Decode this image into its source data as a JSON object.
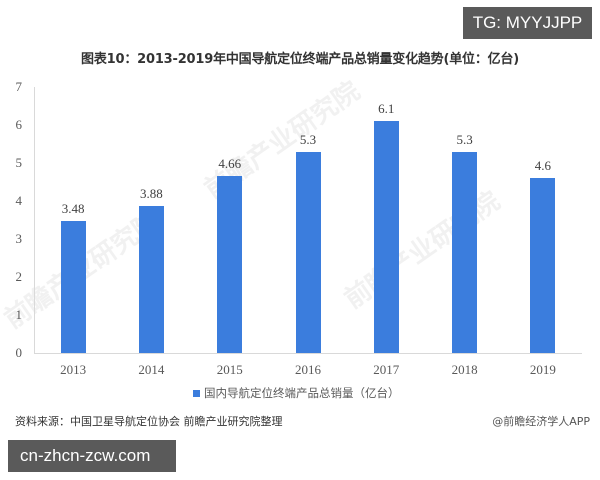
{
  "badges": {
    "top_right": "TG: MYYJJPP",
    "bottom_left": "cn-zhcn-zcw.com"
  },
  "colors": {
    "bar": "#3b7ddd",
    "axis": "#d9d9d9",
    "badge_bg": "#5a5a5a"
  },
  "footer": {
    "source": "资料来源：中国卫星导航定位协会 前瞻产业研究院整理",
    "credit": "@前瞻经济学人APP"
  },
  "watermark": "前瞻产业研究院",
  "chart_data": {
    "type": "bar",
    "title": "图表10：2013-2019年中国导航定位终端产品总销量变化趋势(单位：亿台)",
    "xlabel": "",
    "ylabel": "",
    "categories": [
      "2013",
      "2014",
      "2015",
      "2016",
      "2017",
      "2018",
      "2019"
    ],
    "series": [
      {
        "name": "国内导航定位终端产品总销量（亿台）",
        "values": [
          3.48,
          3.88,
          4.66,
          5.3,
          6.1,
          5.3,
          4.6
        ],
        "labels": [
          "3.48",
          "3.88",
          "4.66",
          "5.3",
          "6.1",
          "5.3",
          "4.6"
        ]
      }
    ],
    "ylim": [
      0,
      7
    ],
    "yticks": [
      "0",
      "1",
      "2",
      "3",
      "4",
      "5",
      "6",
      "7"
    ],
    "grid": false,
    "legend_position": "bottom",
    "data_labels": true
  }
}
